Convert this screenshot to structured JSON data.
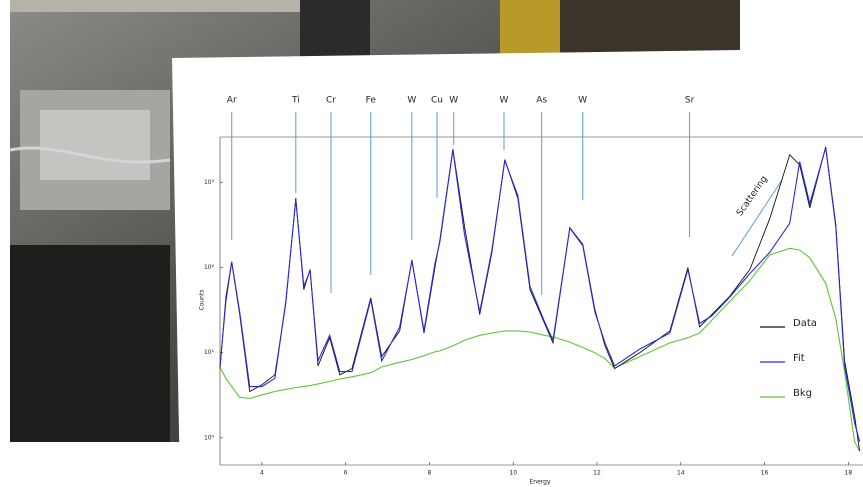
{
  "chart_data": {
    "type": "line",
    "yscale": "log",
    "grid": false,
    "legend": "right",
    "xlabel": "Energy",
    "ylabel": "Counts",
    "xlim": [
      3.0,
      18.35
    ],
    "xticks": [
      4,
      6,
      8,
      10,
      12,
      14,
      16,
      18
    ],
    "ylim": [
      0.48,
      3400
    ],
    "yticks": [
      {
        "value": 1,
        "label": "10⁰"
      },
      {
        "value": 10,
        "label": "10¹"
      },
      {
        "value": 100,
        "label": "10²"
      },
      {
        "value": 1000,
        "label": "10³"
      }
    ],
    "x": [
      3.0,
      3.14,
      3.28,
      3.47,
      3.71,
      4.0,
      4.31,
      4.57,
      4.81,
      5.0,
      5.15,
      5.34,
      5.62,
      5.86,
      6.15,
      6.6,
      6.86,
      7.29,
      7.58,
      7.87,
      8.13,
      8.25,
      8.56,
      8.84,
      9.2,
      9.49,
      9.8,
      10.11,
      10.4,
      10.75,
      10.95,
      11.35,
      11.66,
      11.95,
      12.19,
      12.42,
      13.02,
      13.74,
      14.17,
      14.45,
      14.74,
      15.17,
      15.65,
      16.12,
      16.6,
      16.84,
      17.08,
      17.46,
      17.7,
      17.91,
      18.15,
      18.27
    ],
    "series": [
      {
        "name": "Data",
        "color": "#111111",
        "values": [
          6.5,
          45,
          115,
          28,
          3.5,
          4.2,
          5.5,
          38,
          650,
          55,
          95,
          7,
          15,
          5.5,
          6.5,
          44,
          9,
          18,
          123,
          17,
          100,
          212,
          2450,
          300,
          28,
          150,
          1850,
          650,
          55,
          22,
          13,
          294,
          186,
          32,
          12,
          6.5,
          10,
          18,
          100,
          20,
          28,
          46,
          95,
          370,
          2100,
          1600,
          500,
          2600,
          320,
          8,
          1.8,
          0.7
        ]
      },
      {
        "name": "Fit",
        "color": "#2a2ad8",
        "values": [
          7,
          40,
          117,
          30,
          4,
          4,
          5,
          40,
          620,
          60,
          92,
          8,
          16,
          6,
          6,
          42,
          8,
          20,
          120,
          18,
          110,
          200,
          2400,
          240,
          30,
          160,
          1800,
          700,
          60,
          23,
          14,
          290,
          180,
          30,
          13,
          7,
          11,
          17,
          95,
          22,
          27,
          45,
          85,
          150,
          330,
          1750,
          560,
          2550,
          300,
          7,
          1.5,
          0.9
        ]
      },
      {
        "name": "Bkg",
        "color": "#5fc43a",
        "values": [
          6.7,
          5,
          4,
          3,
          2.9,
          3.2,
          3.5,
          3.7,
          3.9,
          4,
          4.1,
          4.3,
          4.6,
          4.9,
          5.2,
          5.8,
          6.8,
          7.7,
          8.3,
          9.2,
          10.2,
          10.5,
          12,
          14,
          16,
          17,
          18,
          18,
          17.5,
          16,
          15.3,
          13.3,
          11.5,
          10,
          8.5,
          6.6,
          9,
          13,
          15,
          17,
          24,
          40,
          70,
          140,
          168,
          160,
          130,
          65,
          25,
          6,
          0.9,
          0.7
        ]
      }
    ],
    "annotations": [
      {
        "text": "Ar",
        "x": 3.28
      },
      {
        "text": "Ti",
        "x": 4.81
      },
      {
        "text": "Cr",
        "x": 5.65
      },
      {
        "text": "Fe",
        "x": 6.6
      },
      {
        "text": "W",
        "x": 7.58
      },
      {
        "text": "Cu",
        "x": 8.18
      },
      {
        "text": "W",
        "x": 8.58
      },
      {
        "text": "W",
        "x": 9.78
      },
      {
        "text": "As",
        "x": 10.68
      },
      {
        "text": "W",
        "x": 11.66
      },
      {
        "text": "Sr",
        "x": 14.21
      }
    ],
    "scatter_note": "Scattering"
  }
}
